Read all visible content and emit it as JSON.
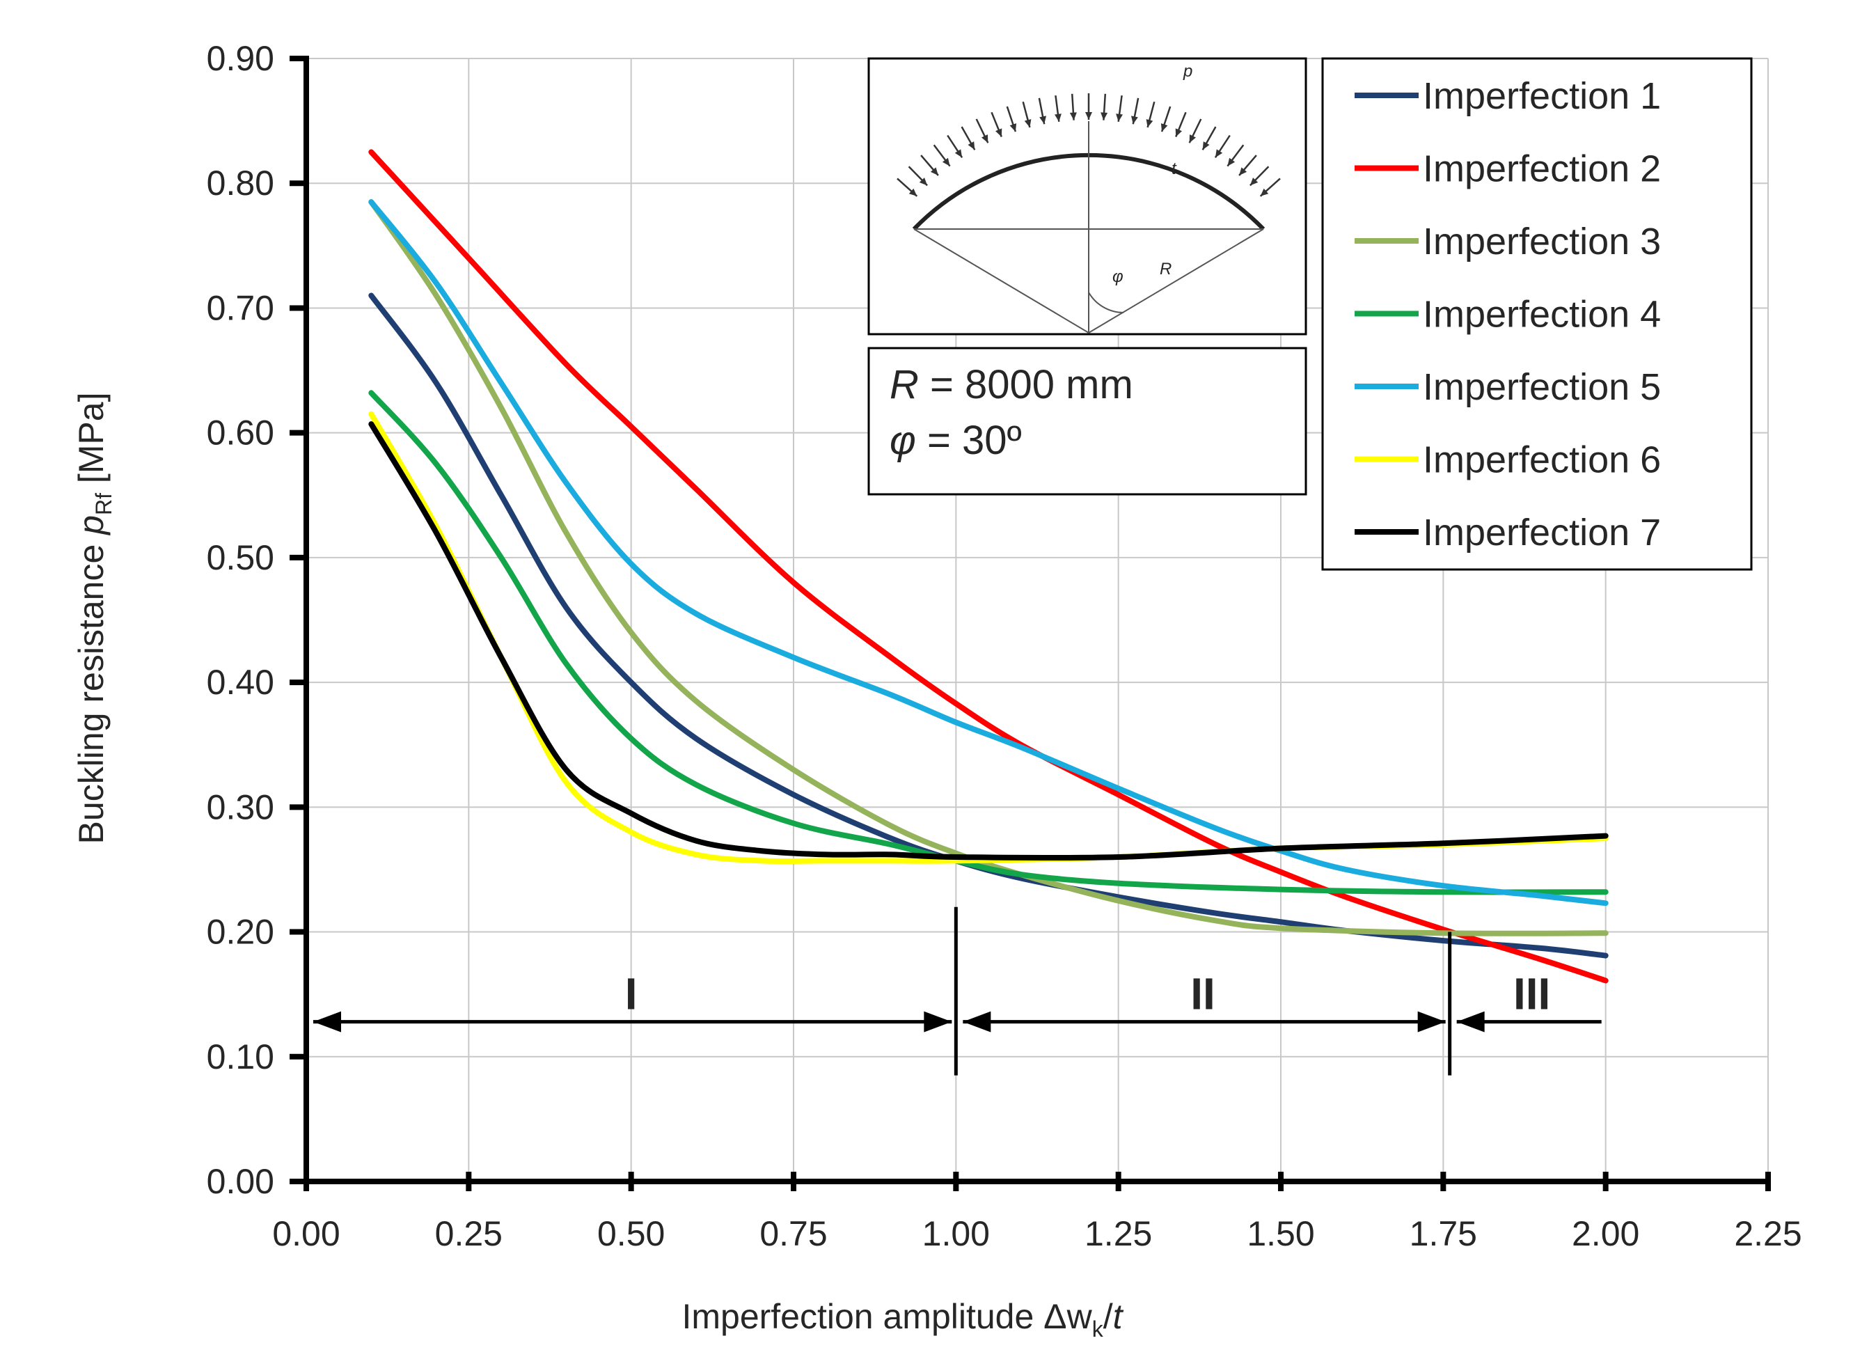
{
  "chart_data": {
    "type": "line",
    "title": "",
    "xlabel": {
      "main": "Imperfection amplitude  Δw",
      "sub": "k",
      "tail": "/",
      "italic": "t"
    },
    "ylabel": {
      "main": "Buckling resistance  ",
      "italic": "p",
      "sub": "Rf",
      "tail": " [MPa]"
    },
    "xlim": [
      0,
      2.25
    ],
    "ylim": [
      0,
      0.9
    ],
    "xticks": [
      0,
      0.25,
      0.5,
      0.75,
      1.0,
      1.25,
      1.5,
      1.75,
      2.0,
      2.25
    ],
    "xtick_labels": [
      "0.00",
      "0.25",
      "0.50",
      "0.75",
      "1.00",
      "1.25",
      "1.50",
      "1.75",
      "2.00",
      "2.25"
    ],
    "yticks": [
      0,
      0.1,
      0.2,
      0.3,
      0.4,
      0.5,
      0.6,
      0.7,
      0.8,
      0.9
    ],
    "ytick_labels": [
      "0.00",
      "0.10",
      "0.20",
      "0.30",
      "0.40",
      "0.50",
      "0.60",
      "0.70",
      "0.80",
      "0.90"
    ],
    "grid": true,
    "legend_position": "top-right",
    "series": [
      {
        "name": "Imperfection 1",
        "color": "#1f3f73",
        "x": [
          0.1,
          0.2,
          0.3,
          0.4,
          0.5,
          0.6,
          0.75,
          0.9,
          1.0,
          1.1,
          1.25,
          1.4,
          1.5,
          1.6,
          1.75,
          1.9,
          2.0
        ],
        "y": [
          0.71,
          0.64,
          0.55,
          0.46,
          0.4,
          0.355,
          0.31,
          0.275,
          0.257,
          0.243,
          0.228,
          0.215,
          0.208,
          0.201,
          0.193,
          0.187,
          0.181
        ]
      },
      {
        "name": "Imperfection 2",
        "color": "#ff0000",
        "x": [
          0.1,
          0.25,
          0.4,
          0.5,
          0.6,
          0.75,
          0.9,
          1.0,
          1.1,
          1.25,
          1.4,
          1.5,
          1.6,
          1.75,
          1.9,
          2.0
        ],
        "y": [
          0.825,
          0.74,
          0.655,
          0.605,
          0.555,
          0.48,
          0.42,
          0.383,
          0.35,
          0.31,
          0.27,
          0.248,
          0.228,
          0.202,
          0.178,
          0.161
        ]
      },
      {
        "name": "Imperfection 3",
        "color": "#94b35a",
        "x": [
          0.1,
          0.2,
          0.3,
          0.4,
          0.5,
          0.6,
          0.75,
          0.9,
          1.0,
          1.1,
          1.25,
          1.4,
          1.5,
          1.75,
          2.0
        ],
        "y": [
          0.785,
          0.71,
          0.62,
          0.52,
          0.44,
          0.385,
          0.33,
          0.285,
          0.263,
          0.246,
          0.225,
          0.209,
          0.203,
          0.199,
          0.199
        ]
      },
      {
        "name": "Imperfection 4",
        "color": "#12a54a",
        "x": [
          0.1,
          0.2,
          0.3,
          0.4,
          0.5,
          0.6,
          0.75,
          0.9,
          1.0,
          1.1,
          1.25,
          1.5,
          1.75,
          2.0
        ],
        "y": [
          0.632,
          0.575,
          0.5,
          0.415,
          0.355,
          0.318,
          0.287,
          0.27,
          0.257,
          0.246,
          0.239,
          0.234,
          0.232,
          0.232
        ]
      },
      {
        "name": "Imperfection 5",
        "color": "#1aacde",
        "x": [
          0.1,
          0.2,
          0.3,
          0.4,
          0.5,
          0.6,
          0.75,
          0.9,
          1.0,
          1.1,
          1.25,
          1.4,
          1.5,
          1.6,
          1.75,
          1.9,
          2.0
        ],
        "y": [
          0.785,
          0.72,
          0.64,
          0.56,
          0.495,
          0.455,
          0.42,
          0.39,
          0.368,
          0.348,
          0.315,
          0.283,
          0.265,
          0.25,
          0.237,
          0.229,
          0.223
        ]
      },
      {
        "name": "Imperfection 6",
        "color": "#ffff00",
        "x": [
          0.1,
          0.2,
          0.3,
          0.4,
          0.5,
          0.6,
          0.7,
          0.8,
          0.9,
          1.0,
          1.25,
          1.5,
          1.75,
          2.0
        ],
        "y": [
          0.615,
          0.525,
          0.42,
          0.32,
          0.28,
          0.262,
          0.257,
          0.257,
          0.257,
          0.257,
          0.26,
          0.267,
          0.27,
          0.275
        ]
      },
      {
        "name": "Imperfection 7",
        "color": "#000000",
        "x": [
          0.1,
          0.2,
          0.3,
          0.4,
          0.5,
          0.6,
          0.7,
          0.8,
          0.9,
          1.0,
          1.25,
          1.5,
          1.75,
          2.0
        ],
        "y": [
          0.607,
          0.52,
          0.42,
          0.33,
          0.295,
          0.273,
          0.265,
          0.262,
          0.262,
          0.26,
          0.26,
          0.267,
          0.271,
          0.277
        ]
      }
    ],
    "annotations": {
      "zones": [
        {
          "label": "I",
          "x_from": 0.0,
          "x_to": 1.0
        },
        {
          "label": "II",
          "x_from": 1.0,
          "x_to": 1.76
        },
        {
          "label": "III",
          "x_from": 1.76,
          "x_to": 2.0
        }
      ],
      "zone_arrow_y": 0.128,
      "dividers": [
        {
          "x": 1.0,
          "y_from": 0.085,
          "y_to": 0.22
        },
        {
          "x": 1.76,
          "y_from": 0.085,
          "y_to": 0.2
        }
      ]
    }
  },
  "inset": {
    "p_label": "p",
    "t_label": "t",
    "phi_label": "φ",
    "r_label": "R",
    "params_line1_italic": "R",
    "params_line1_rest": " = 8000 mm",
    "params_line2_italic": "φ",
    "params_line2_rest": " = 30º"
  }
}
